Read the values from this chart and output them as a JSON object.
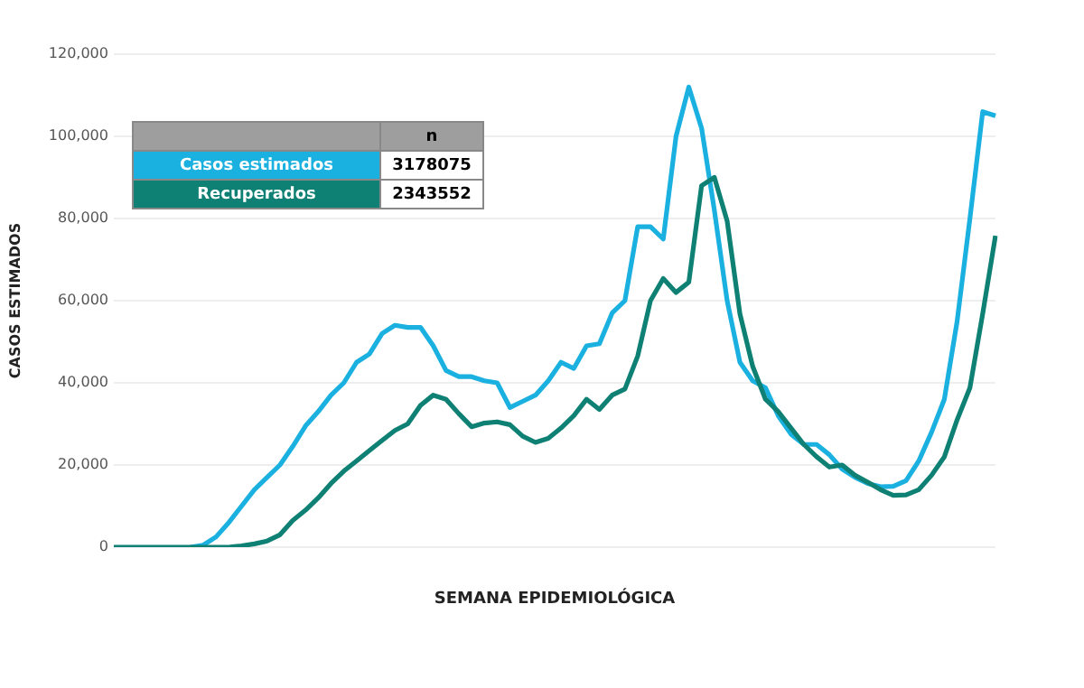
{
  "chart_data": {
    "type": "line",
    "xlabel": "SEMANA EPIDEMIOLÓGICA",
    "ylabel": "CASOS ESTIMADOS",
    "categories": [
      null,
      null,
      null,
      null,
      null,
      null,
      null,
      null,
      null,
      null,
      null,
      null,
      null,
      null,
      null,
      null,
      null,
      null,
      null,
      null,
      null,
      null,
      null,
      null,
      null,
      null,
      null,
      null,
      null,
      null,
      null,
      null,
      null,
      null,
      null,
      null,
      null,
      null,
      null,
      null,
      null,
      null,
      null,
      null,
      null,
      null,
      null,
      null,
      null,
      null,
      null,
      null,
      null,
      null,
      null,
      null,
      null,
      null,
      null,
      null,
      null,
      null,
      null,
      null,
      null,
      null,
      null,
      null,
      null,
      null
    ],
    "series": [
      {
        "name": "Casos estimados",
        "color": "#1ab0e0",
        "values": [
          null,
          null,
          null,
          null,
          null,
          null,
          0,
          500,
          2500,
          6000,
          10000,
          14000,
          17000,
          20000,
          24500,
          29500,
          33000,
          37000,
          40000,
          45000,
          47000,
          52000,
          54000,
          53500,
          53500,
          49000,
          43000,
          41500,
          41500,
          40500,
          40000,
          34000,
          35500,
          37000,
          40500,
          45000,
          43500,
          49000,
          49500,
          57000,
          60000,
          78000,
          78000,
          75000,
          100000,
          112000,
          102000,
          82000,
          60000,
          45000,
          40500,
          38800,
          32000,
          27500,
          25000,
          25000,
          22500,
          19000,
          17000,
          15500,
          14700,
          14800,
          16200,
          21000,
          28000,
          36000,
          55000,
          80000,
          106000,
          105000
        ]
      },
      {
        "name": "Recuperados",
        "color": "#0e8074",
        "values": [
          0,
          0,
          0,
          0,
          0,
          0,
          0,
          0,
          0,
          0,
          300,
          800,
          1500,
          3000,
          6500,
          9000,
          12000,
          15500,
          18500,
          21000,
          23500,
          26000,
          28400,
          30000,
          34500,
          37000,
          36000,
          32500,
          29300,
          30200,
          30500,
          29800,
          27000,
          25500,
          26500,
          29000,
          32000,
          36000,
          33500,
          37000,
          38500,
          46500,
          60000,
          65400,
          62000,
          64500,
          88000,
          90000,
          79400,
          56800,
          44000,
          36000,
          33000,
          29000,
          25000,
          22000,
          19500,
          20000,
          17500,
          15800,
          14000,
          12600,
          12700,
          14000,
          17500,
          22000,
          31000,
          38800,
          56800,
          75800
        ]
      }
    ],
    "legend_title": "n",
    "annotations": [
      "3178075",
      "2343552"
    ],
    "ylim": [
      0,
      120000
    ],
    "yticks": [
      {
        "value": 0,
        "label": "0"
      },
      {
        "value": 20000,
        "label": "20,000"
      },
      {
        "value": 40000,
        "label": "40,000"
      },
      {
        "value": 60000,
        "label": "60,000"
      },
      {
        "value": 80000,
        "label": "80,000"
      },
      {
        "value": 100000,
        "label": "100,000"
      },
      {
        "value": 120000,
        "label": "120,000"
      }
    ],
    "grid": "y",
    "legend": "top left",
    "tick_labels": "y",
    "marker": "none",
    "line_style": "solid"
  }
}
